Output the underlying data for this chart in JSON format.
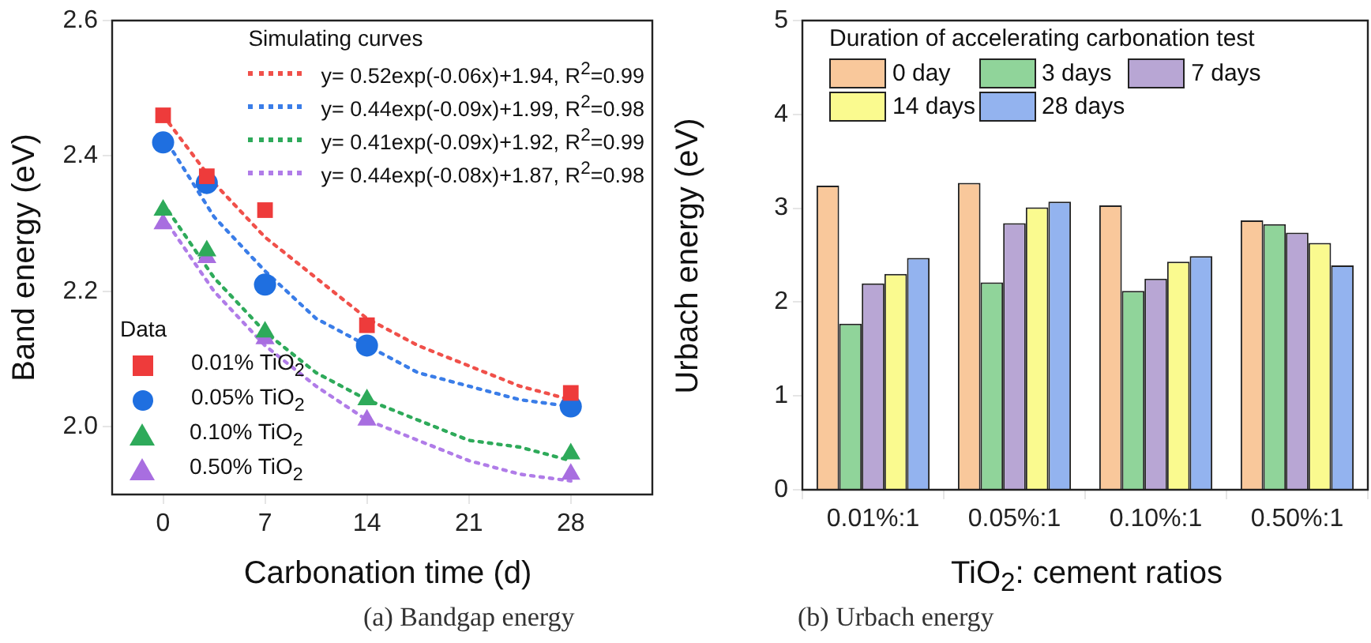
{
  "chart_data": [
    {
      "type": "scatter",
      "xlabel": "Carbonation time (d)",
      "ylabel": "Band energy (eV)",
      "xlim": [
        -3.5,
        33.6
      ],
      "xticks": [
        0,
        7,
        14,
        21,
        28
      ],
      "ylim": [
        1.9,
        2.6
      ],
      "yticks": [
        {
          "value": 2,
          "label": "2.0"
        },
        2.2,
        2.4,
        2.6
      ],
      "grid": false,
      "legend": "right",
      "legend_title": "Data",
      "annotations": [
        "Simulating curves",
        "(a) Bandgap energy"
      ],
      "series": [
        {
          "type": "line",
          "name": "y= 0.52exp(-0.06x)+1.94, R$^{2}$=0.99",
          "color": "#f0504a",
          "marker": "none",
          "line_style": "dotted",
          "x": [
            0,
            3.5,
            7,
            10.5,
            14,
            17.5,
            21,
            24.5,
            28
          ],
          "values": [
            2.46,
            2.36,
            2.28,
            2.22,
            2.16,
            2.12,
            2.09,
            2.06,
            2.04
          ]
        },
        {
          "type": "line",
          "name": "y= 0.44exp(-0.09x)+1.99, R$^{2}$=0.98",
          "color": "#3a7de8",
          "marker": "none",
          "line_style": "dotted",
          "x": [
            0,
            3.5,
            7,
            10.5,
            14,
            17.5,
            21,
            24.5,
            28
          ],
          "values": [
            2.43,
            2.31,
            2.23,
            2.16,
            2.12,
            2.08,
            2.06,
            2.04,
            2.03
          ]
        },
        {
          "type": "line",
          "name": "y= 0.41exp(-0.09x)+1.92, R$^{2}$=0.99",
          "color": "#2eaa5a",
          "marker": "none",
          "line_style": "dotted",
          "x": [
            0,
            3.5,
            7,
            10.5,
            14,
            17.5,
            21,
            24.5,
            28
          ],
          "values": [
            2.33,
            2.22,
            2.14,
            2.08,
            2.04,
            2.01,
            1.98,
            1.97,
            1.95
          ]
        },
        {
          "type": "line",
          "name": "y= 0.44exp(-0.08x)+1.87, R$^{2}$=0.98",
          "color": "#b07ce8",
          "marker": "none",
          "line_style": "dotted",
          "x": [
            0,
            3.5,
            7,
            10.5,
            14,
            17.5,
            21,
            24.5,
            28
          ],
          "values": [
            2.31,
            2.2,
            2.12,
            2.06,
            2.01,
            1.98,
            1.95,
            1.93,
            1.92
          ]
        },
        {
          "type": "scatter",
          "name": "0.01% TiO$_{2}$",
          "color": "#ee3b3b",
          "marker": "square",
          "x": [
            0,
            3,
            7,
            14,
            28
          ],
          "values": [
            2.46,
            2.37,
            2.32,
            2.15,
            2.05
          ]
        },
        {
          "type": "scatter",
          "name": "0.05% TiO$_{2}$",
          "color": "#1f6fe0",
          "marker": "circle",
          "x": [
            0,
            3,
            7,
            14,
            28
          ],
          "values": [
            2.42,
            2.36,
            2.21,
            2.12,
            2.03
          ]
        },
        {
          "type": "scatter",
          "name": "0.10% TiO$_{2}$",
          "color": "#2eaa5a",
          "marker": "triangle",
          "x": [
            0,
            3,
            7,
            14,
            28
          ],
          "values": [
            2.32,
            2.26,
            2.14,
            2.04,
            1.96
          ]
        },
        {
          "type": "scatter",
          "name": "0.50% TiO$_{2}$",
          "color": "#a86ee0",
          "marker": "triangle",
          "x": [
            0,
            3,
            7,
            14,
            28
          ],
          "values": [
            2.3,
            2.25,
            2.13,
            2.01,
            1.93
          ]
        }
      ]
    },
    {
      "type": "bar",
      "xlabel": "TiO$_{2}$: cement ratios",
      "ylabel": "Urbach energy (eV)",
      "categories": [
        "0.01%:1",
        "0.05%:1",
        "0.10%:1",
        "0.50%:1"
      ],
      "ylim": [
        0,
        5
      ],
      "yticks": [
        0,
        1,
        2,
        3,
        4,
        5
      ],
      "grid": false,
      "legend": "top left",
      "legend_title": "Duration of accelerating carbonation test",
      "annotations": [
        "(b) Urbach energy"
      ],
      "series": [
        {
          "name": "0 day",
          "color": "#f9c89b",
          "values": [
            3.24,
            3.27,
            3.03,
            2.87
          ]
        },
        {
          "name": "3 days",
          "color": "#90d49a",
          "values": [
            1.77,
            2.21,
            2.12,
            2.83
          ]
        },
        {
          "name": "7 days",
          "color": "#b8a6d4",
          "values": [
            2.2,
            2.84,
            2.25,
            2.74
          ]
        },
        {
          "name": "14 days",
          "color": "#fafa8f",
          "values": [
            2.3,
            3.01,
            2.43,
            2.63
          ]
        },
        {
          "name": "28 days",
          "color": "#93b3ef",
          "values": [
            2.47,
            3.07,
            2.49,
            2.39
          ]
        }
      ]
    }
  ]
}
